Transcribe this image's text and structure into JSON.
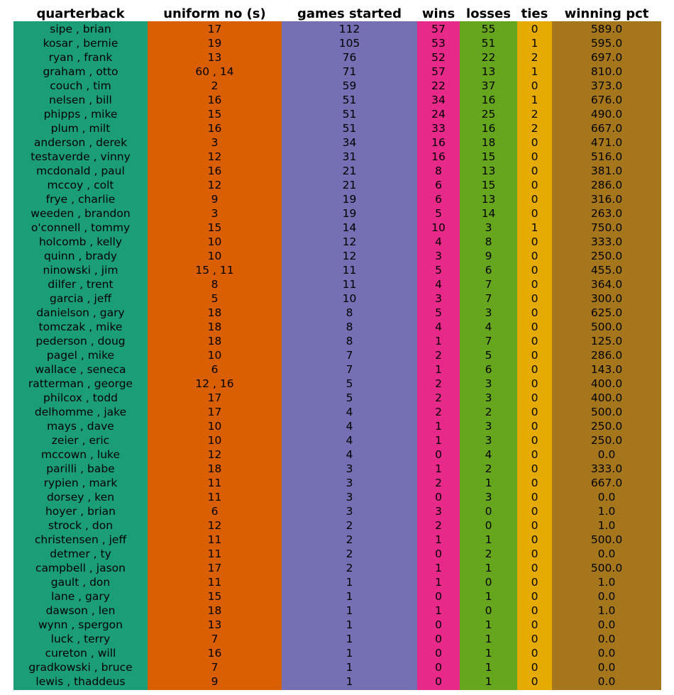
{
  "chart_data": {
    "type": "table",
    "columns": [
      "quarterback",
      "uniform no (s)",
      "games started",
      "wins",
      "losses",
      "ties",
      "winning pct"
    ],
    "column_colors": [
      "#1b9e77",
      "#d95f02",
      "#7570b3",
      "#e7298a",
      "#66a61e",
      "#e6ab02",
      "#a6761d"
    ],
    "rows": [
      [
        "sipe , brian",
        "17",
        "112",
        "57",
        "55",
        "0",
        "589.0"
      ],
      [
        "kosar , bernie",
        "19",
        "105",
        "53",
        "51",
        "1",
        "595.0"
      ],
      [
        "ryan , frank",
        "13",
        "76",
        "52",
        "22",
        "2",
        "697.0"
      ],
      [
        "graham , otto",
        "60 , 14",
        "71",
        "57",
        "13",
        "1",
        "810.0"
      ],
      [
        "couch , tim",
        "2",
        "59",
        "22",
        "37",
        "0",
        "373.0"
      ],
      [
        "nelsen , bill",
        "16",
        "51",
        "34",
        "16",
        "1",
        "676.0"
      ],
      [
        "phipps , mike",
        "15",
        "51",
        "24",
        "25",
        "2",
        "490.0"
      ],
      [
        "plum , milt",
        "16",
        "51",
        "33",
        "16",
        "2",
        "667.0"
      ],
      [
        "anderson , derek",
        "3",
        "34",
        "16",
        "18",
        "0",
        "471.0"
      ],
      [
        "testaverde , vinny",
        "12",
        "31",
        "16",
        "15",
        "0",
        "516.0"
      ],
      [
        "mcdonald , paul",
        "16",
        "21",
        "8",
        "13",
        "0",
        "381.0"
      ],
      [
        "mccoy , colt",
        "12",
        "21",
        "6",
        "15",
        "0",
        "286.0"
      ],
      [
        "frye , charlie",
        "9",
        "19",
        "6",
        "13",
        "0",
        "316.0"
      ],
      [
        "weeden , brandon",
        "3",
        "19",
        "5",
        "14",
        "0",
        "263.0"
      ],
      [
        "o'connell , tommy",
        "15",
        "14",
        "10",
        "3",
        "1",
        "750.0"
      ],
      [
        "holcomb , kelly",
        "10",
        "12",
        "4",
        "8",
        "0",
        "333.0"
      ],
      [
        "quinn , brady",
        "10",
        "12",
        "3",
        "9",
        "0",
        "250.0"
      ],
      [
        "ninowski , jim",
        "15 , 11",
        "11",
        "5",
        "6",
        "0",
        "455.0"
      ],
      [
        "dilfer , trent",
        "8",
        "11",
        "4",
        "7",
        "0",
        "364.0"
      ],
      [
        "garcia , jeff",
        "5",
        "10",
        "3",
        "7",
        "0",
        "300.0"
      ],
      [
        "danielson , gary",
        "18",
        "8",
        "5",
        "3",
        "0",
        "625.0"
      ],
      [
        "tomczak , mike",
        "18",
        "8",
        "4",
        "4",
        "0",
        "500.0"
      ],
      [
        "pederson , doug",
        "18",
        "8",
        "1",
        "7",
        "0",
        "125.0"
      ],
      [
        "pagel , mike",
        "10",
        "7",
        "2",
        "5",
        "0",
        "286.0"
      ],
      [
        "wallace , seneca",
        "6",
        "7",
        "1",
        "6",
        "0",
        "143.0"
      ],
      [
        "ratterman , george",
        "12 , 16",
        "5",
        "2",
        "3",
        "0",
        "400.0"
      ],
      [
        "philcox , todd",
        "17",
        "5",
        "2",
        "3",
        "0",
        "400.0"
      ],
      [
        "delhomme , jake",
        "17",
        "4",
        "2",
        "2",
        "0",
        "500.0"
      ],
      [
        "mays , dave",
        "10",
        "4",
        "1",
        "3",
        "0",
        "250.0"
      ],
      [
        "zeier , eric",
        "10",
        "4",
        "1",
        "3",
        "0",
        "250.0"
      ],
      [
        "mccown , luke",
        "12",
        "4",
        "0",
        "4",
        "0",
        "0.0"
      ],
      [
        "parilli , babe",
        "18",
        "3",
        "1",
        "2",
        "0",
        "333.0"
      ],
      [
        "rypien , mark",
        "11",
        "3",
        "2",
        "1",
        "0",
        "667.0"
      ],
      [
        "dorsey , ken",
        "11",
        "3",
        "0",
        "3",
        "0",
        "0.0"
      ],
      [
        "hoyer , brian",
        "6",
        "3",
        "3",
        "0",
        "0",
        "1.0"
      ],
      [
        "strock , don",
        "12",
        "2",
        "2",
        "0",
        "0",
        "1.0"
      ],
      [
        "christensen , jeff",
        "11",
        "2",
        "1",
        "1",
        "0",
        "500.0"
      ],
      [
        "detmer , ty",
        "11",
        "2",
        "0",
        "2",
        "0",
        "0.0"
      ],
      [
        "campbell , jason",
        "17",
        "2",
        "1",
        "1",
        "0",
        "500.0"
      ],
      [
        "gault , don",
        "11",
        "1",
        "1",
        "0",
        "0",
        "1.0"
      ],
      [
        "lane , gary",
        "15",
        "1",
        "0",
        "1",
        "0",
        "0.0"
      ],
      [
        "dawson , len",
        "18",
        "1",
        "1",
        "0",
        "0",
        "1.0"
      ],
      [
        "wynn , spergon",
        "13",
        "1",
        "0",
        "1",
        "0",
        "0.0"
      ],
      [
        "luck , terry",
        "7",
        "1",
        "0",
        "1",
        "0",
        "0.0"
      ],
      [
        "cureton , will",
        "16",
        "1",
        "0",
        "1",
        "0",
        "0.0"
      ],
      [
        "gradkowski , bruce",
        "7",
        "1",
        "0",
        "1",
        "0",
        "0.0"
      ],
      [
        "lewis , thaddeus",
        "9",
        "1",
        "0",
        "1",
        "0",
        "0.0"
      ]
    ]
  }
}
